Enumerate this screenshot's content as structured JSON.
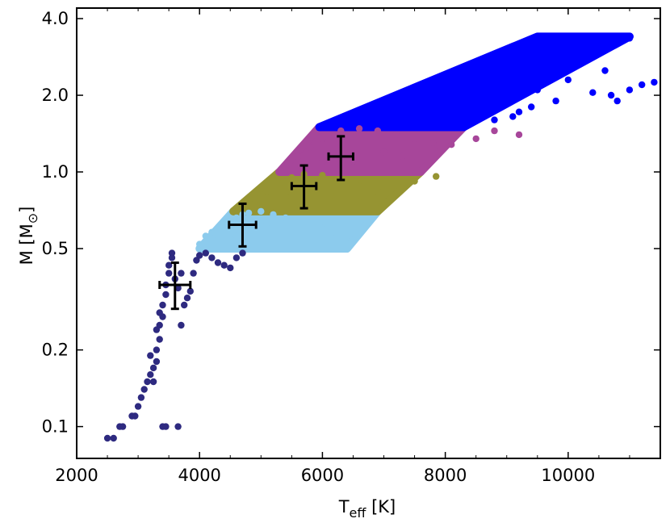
{
  "chart_data": {
    "type": "scatter",
    "x_scale": "linear",
    "y_scale": "log",
    "xlim": [
      2000,
      11500
    ],
    "ylim": [
      0.075,
      4.4
    ],
    "xlabel": {
      "main": "T",
      "sub": "eff",
      "unit": " [K]"
    },
    "ylabel": {
      "main": "M [M",
      "sub": "⊙",
      "close": "]"
    },
    "x_ticks": [
      2000,
      4000,
      6000,
      8000,
      10000
    ],
    "x_tick_labels": [
      "2000",
      "4000",
      "6000",
      "8000",
      "10000"
    ],
    "y_ticks": [
      0.1,
      0.2,
      0.5,
      1.0,
      2.0,
      4.0
    ],
    "y_tick_labels": [
      "0.1",
      "0.2",
      "0.5",
      "1.0",
      "2.0",
      "4.0"
    ],
    "grid": false,
    "legend": "none",
    "series": [
      {
        "color": "#2e2a80",
        "band": "M < 0.5",
        "points": [
          [
            2500,
            0.09
          ],
          [
            2600,
            0.09
          ],
          [
            2700,
            0.1
          ],
          [
            2750,
            0.1
          ],
          [
            2900,
            0.11
          ],
          [
            2950,
            0.11
          ],
          [
            3000,
            0.12
          ],
          [
            3050,
            0.13
          ],
          [
            3100,
            0.14
          ],
          [
            3150,
            0.15
          ],
          [
            3200,
            0.16
          ],
          [
            3250,
            0.17
          ],
          [
            3250,
            0.15
          ],
          [
            3300,
            0.18
          ],
          [
            3300,
            0.2
          ],
          [
            3350,
            0.22
          ],
          [
            3350,
            0.25
          ],
          [
            3400,
            0.27
          ],
          [
            3400,
            0.3
          ],
          [
            3450,
            0.33
          ],
          [
            3450,
            0.36
          ],
          [
            3500,
            0.4
          ],
          [
            3500,
            0.43
          ],
          [
            3550,
            0.46
          ],
          [
            3550,
            0.48
          ],
          [
            3400,
            0.1
          ],
          [
            3450,
            0.1
          ],
          [
            3650,
            0.1
          ],
          [
            3700,
            0.25
          ],
          [
            3750,
            0.3
          ],
          [
            3800,
            0.32
          ],
          [
            3850,
            0.34
          ],
          [
            3900,
            0.4
          ],
          [
            3950,
            0.45
          ],
          [
            4000,
            0.47
          ],
          [
            4100,
            0.48
          ],
          [
            4200,
            0.46
          ],
          [
            4300,
            0.44
          ],
          [
            4400,
            0.43
          ],
          [
            4500,
            0.42
          ],
          [
            4600,
            0.46
          ],
          [
            4700,
            0.48
          ],
          [
            3600,
            0.38
          ],
          [
            3650,
            0.35
          ],
          [
            3700,
            0.4
          ],
          [
            3300,
            0.24
          ],
          [
            3350,
            0.28
          ],
          [
            3200,
            0.19
          ]
        ]
      },
      {
        "color": "#8ccbed",
        "band": "0.5 - 0.7",
        "points": [
          [
            4000,
            0.52
          ],
          [
            4100,
            0.56
          ],
          [
            4200,
            0.58
          ],
          [
            4300,
            0.6
          ],
          [
            4400,
            0.62
          ],
          [
            4500,
            0.64
          ],
          [
            4600,
            0.66
          ],
          [
            4700,
            0.68
          ],
          [
            4800,
            0.69
          ],
          [
            5000,
            0.7
          ],
          [
            5200,
            0.68
          ],
          [
            5400,
            0.66
          ],
          [
            5600,
            0.64
          ],
          [
            5800,
            0.62
          ],
          [
            6000,
            0.6
          ],
          [
            6200,
            0.58
          ],
          [
            4500,
            0.55
          ],
          [
            4800,
            0.6
          ],
          [
            5100,
            0.63
          ],
          [
            4300,
            0.54
          ],
          [
            4600,
            0.56
          ],
          [
            5000,
            0.57
          ]
        ]
      },
      {
        "color": "#969432",
        "band": "0.7 - 1.0",
        "points": [
          [
            4700,
            0.73
          ],
          [
            4900,
            0.78
          ],
          [
            5100,
            0.84
          ],
          [
            5300,
            0.9
          ],
          [
            5500,
            0.95
          ],
          [
            5700,
            0.98
          ],
          [
            6000,
            0.97
          ],
          [
            6300,
            0.93
          ],
          [
            6600,
            0.88
          ],
          [
            6900,
            0.84
          ],
          [
            7200,
            0.82
          ],
          [
            7500,
            0.92
          ],
          [
            7850,
            0.96
          ],
          [
            5400,
            0.8
          ],
          [
            5800,
            0.85
          ],
          [
            6200,
            0.8
          ],
          [
            6600,
            0.76
          ],
          [
            5000,
            0.75
          ]
        ]
      },
      {
        "color": "#a7469a",
        "band": "1.0 - 1.5",
        "points": [
          [
            5400,
            1.05
          ],
          [
            5600,
            1.15
          ],
          [
            5800,
            1.25
          ],
          [
            6000,
            1.35
          ],
          [
            6300,
            1.45
          ],
          [
            6600,
            1.48
          ],
          [
            6900,
            1.45
          ],
          [
            7200,
            1.4
          ],
          [
            7500,
            1.35
          ],
          [
            7800,
            1.3
          ],
          [
            8100,
            1.28
          ],
          [
            8500,
            1.35
          ],
          [
            8800,
            1.45
          ],
          [
            9200,
            1.4
          ],
          [
            7000,
            1.2
          ],
          [
            6500,
            1.1
          ],
          [
            7300,
            1.15
          ],
          [
            6000,
            1.1
          ]
        ]
      },
      {
        "color": "#0000ff",
        "band": "M > 1.5",
        "points": [
          [
            6000,
            1.52
          ],
          [
            6300,
            1.58
          ],
          [
            6600,
            1.65
          ],
          [
            6900,
            1.75
          ],
          [
            7200,
            1.85
          ],
          [
            7500,
            1.95
          ],
          [
            7800,
            2.05
          ],
          [
            8100,
            2.1
          ],
          [
            8400,
            2.2
          ],
          [
            8700,
            2.3
          ],
          [
            9000,
            2.4
          ],
          [
            9300,
            2.5
          ],
          [
            9600,
            2.65
          ],
          [
            9900,
            2.8
          ],
          [
            10200,
            2.95
          ],
          [
            10500,
            3.1
          ],
          [
            10800,
            3.25
          ],
          [
            11000,
            3.35
          ],
          [
            7500,
            1.7
          ],
          [
            8000,
            1.8
          ],
          [
            8500,
            1.9
          ],
          [
            9000,
            2.0
          ],
          [
            9500,
            2.1
          ],
          [
            10000,
            2.3
          ],
          [
            10600,
            2.5
          ],
          [
            11200,
            2.2
          ],
          [
            11400,
            2.25
          ],
          [
            8800,
            1.6
          ],
          [
            9200,
            1.72
          ],
          [
            9800,
            1.9
          ],
          [
            10400,
            2.05
          ],
          [
            10800,
            1.9
          ],
          [
            9100,
            1.65
          ],
          [
            8600,
            2.5
          ],
          [
            7200,
            2.0
          ],
          [
            6800,
            1.7
          ],
          [
            10700,
            2.0
          ],
          [
            11000,
            2.1
          ],
          [
            9400,
            1.8
          ],
          [
            7000,
            1.62
          ]
        ]
      }
    ],
    "error_bars": [
      {
        "x": 3600,
        "y": 0.36,
        "x_err": [
          250,
          250
        ],
        "y_err": [
          0.07,
          0.08
        ],
        "color": "#000000"
      },
      {
        "x": 4700,
        "y": 0.62,
        "x_err": [
          220,
          220
        ],
        "y_err": [
          0.11,
          0.13
        ],
        "color": "#000000"
      },
      {
        "x": 5700,
        "y": 0.88,
        "x_err": [
          200,
          200
        ],
        "y_err": [
          0.16,
          0.18
        ],
        "color": "#000000"
      },
      {
        "x": 6300,
        "y": 1.15,
        "x_err": [
          200,
          200
        ],
        "y_err": [
          0.22,
          0.23
        ],
        "color": "#000000"
      }
    ],
    "bands": [
      {
        "color": "#8ccbed",
        "x_left": [
          4000,
          4550
        ],
        "x_right": [
          6400,
          6900
        ],
        "y": [
          0.5,
          0.7
        ]
      },
      {
        "color": "#969432",
        "x_left": [
          4550,
          5300
        ],
        "x_right": [
          6900,
          7600
        ],
        "y": [
          0.7,
          1.0
        ]
      },
      {
        "color": "#a7469a",
        "x_left": [
          5300,
          5950
        ],
        "x_right": [
          7600,
          8300
        ],
        "y": [
          1.0,
          1.5
        ]
      },
      {
        "color": "#0000ff",
        "x_left": [
          5950,
          9500
        ],
        "x_right": [
          8300,
          11000
        ],
        "y": [
          1.5,
          3.4
        ]
      }
    ]
  }
}
